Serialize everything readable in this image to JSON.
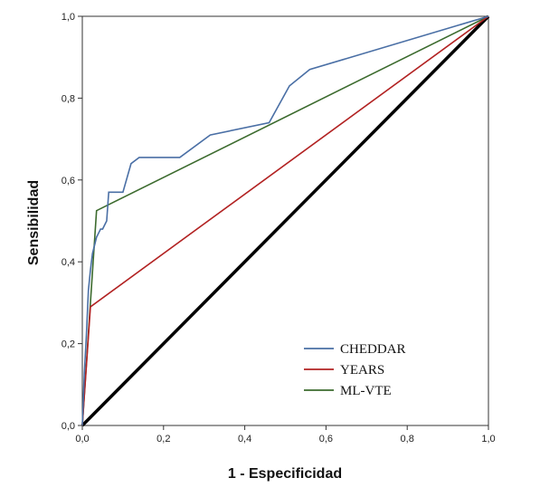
{
  "chart_data": {
    "type": "line",
    "xlabel": "1 - Especificidad",
    "ylabel": "Sensibilidad",
    "xlim": [
      0,
      1
    ],
    "ylim": [
      0,
      1
    ],
    "x_ticks": [
      "0,0",
      "0,2",
      "0,4",
      "0,6",
      "0,8",
      "1,0"
    ],
    "y_ticks": [
      "0,0",
      "0,2",
      "0,4",
      "0,6",
      "0,8",
      "1,0"
    ],
    "legend_position": "bottom-right",
    "grid": false,
    "reference_line": {
      "x": [
        0,
        1
      ],
      "y": [
        0,
        1
      ],
      "color": "#000000"
    },
    "series": [
      {
        "name": "CHEDDAR",
        "color": "#4a6fa5",
        "points": [
          [
            0,
            0
          ],
          [
            0.005,
            0.13
          ],
          [
            0.01,
            0.22
          ],
          [
            0.015,
            0.33
          ],
          [
            0.02,
            0.38
          ],
          [
            0.025,
            0.42
          ],
          [
            0.03,
            0.44
          ],
          [
            0.035,
            0.46
          ],
          [
            0.04,
            0.47
          ],
          [
            0.045,
            0.48
          ],
          [
            0.05,
            0.48
          ],
          [
            0.055,
            0.49
          ],
          [
            0.06,
            0.5
          ],
          [
            0.065,
            0.57
          ],
          [
            0.1,
            0.57
          ],
          [
            0.12,
            0.64
          ],
          [
            0.14,
            0.655
          ],
          [
            0.24,
            0.655
          ],
          [
            0.315,
            0.71
          ],
          [
            0.46,
            0.74
          ],
          [
            0.51,
            0.83
          ],
          [
            0.56,
            0.87
          ],
          [
            1,
            1
          ]
        ]
      },
      {
        "name": "YEARS",
        "color": "#b22222",
        "points": [
          [
            0,
            0
          ],
          [
            0.02,
            0.29
          ],
          [
            1,
            1
          ]
        ]
      },
      {
        "name": "ML-VTE",
        "color": "#3c6b2e",
        "points": [
          [
            0,
            0
          ],
          [
            0.035,
            0.525
          ],
          [
            1,
            1
          ]
        ]
      }
    ]
  }
}
